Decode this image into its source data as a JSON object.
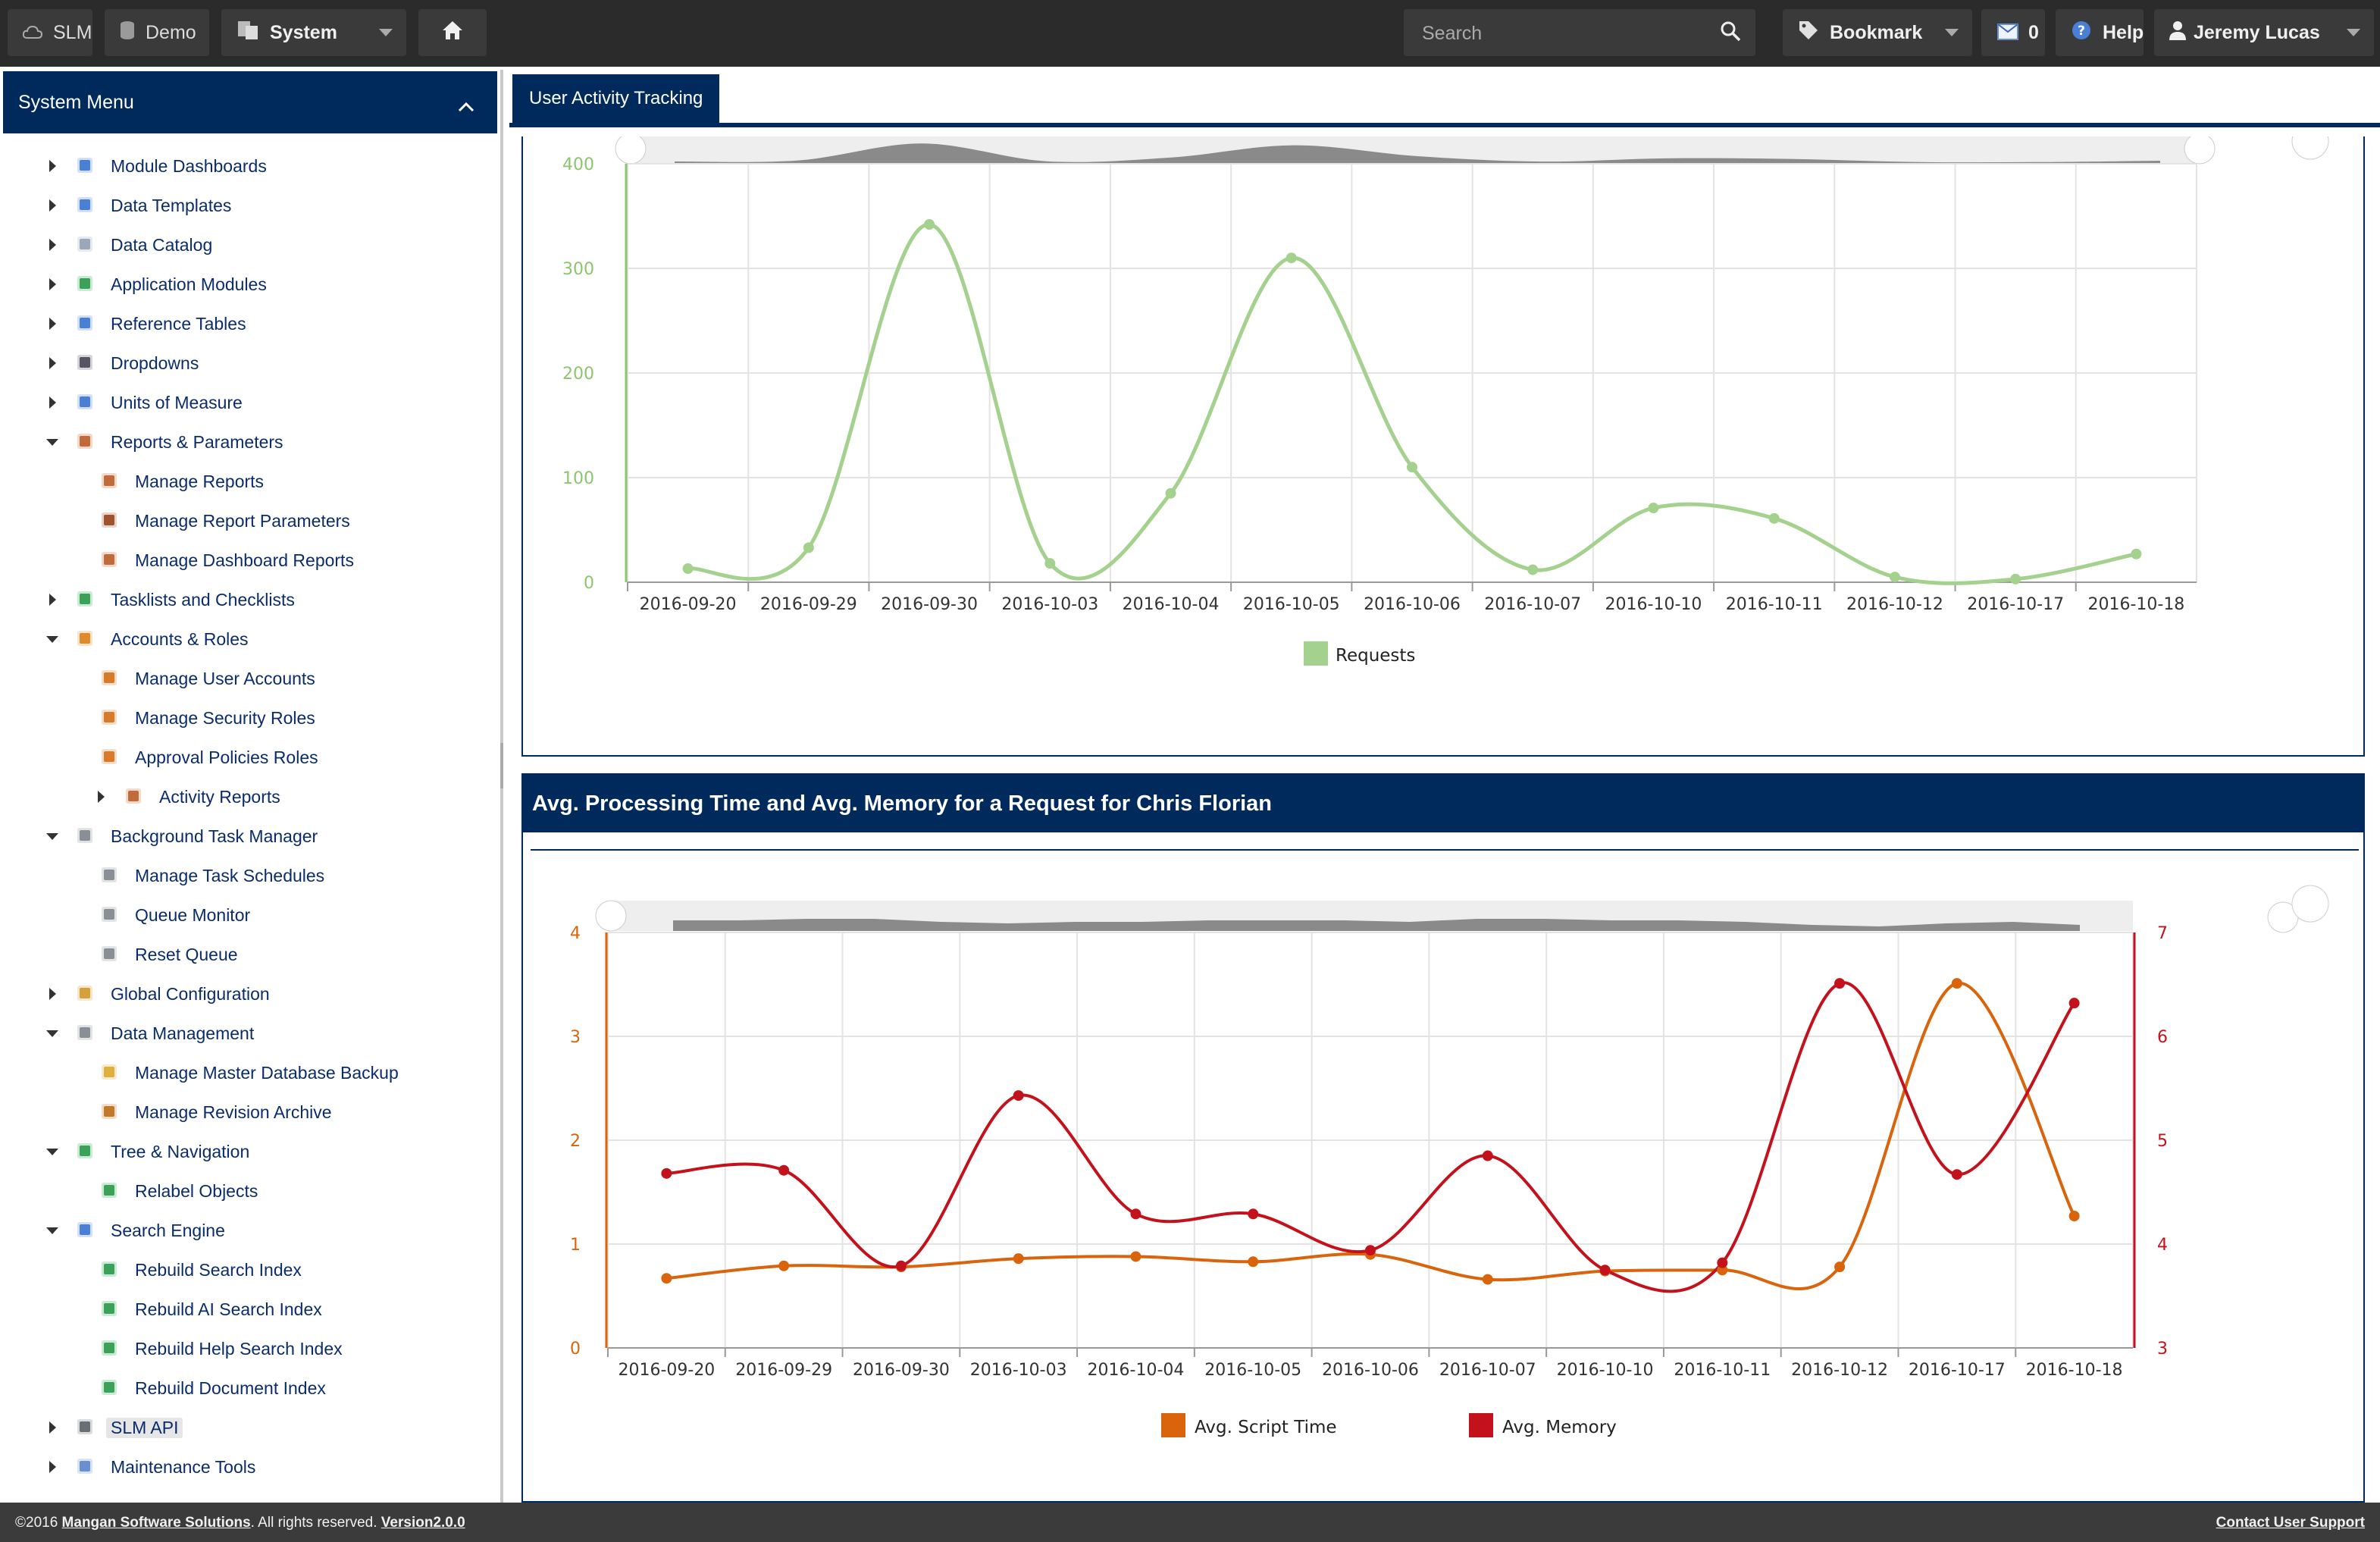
{
  "topbar": {
    "app_label": "SLM",
    "db_label": "Demo",
    "system_label": "System",
    "search_placeholder": "Search",
    "bookmark_label": "Bookmark",
    "inbox_count": "0",
    "help_label": "Help",
    "user_label": "Jeremy Lucas"
  },
  "sidebar": {
    "title": "System Menu",
    "items": [
      {
        "label": "Module Dashboards",
        "level": 0,
        "arrow": "right",
        "icon": "dashboard-icon"
      },
      {
        "label": "Data Templates",
        "level": 0,
        "arrow": "right",
        "icon": "template-icon"
      },
      {
        "label": "Data Catalog",
        "level": 0,
        "arrow": "right",
        "icon": "database-icon"
      },
      {
        "label": "Application Modules",
        "level": 0,
        "arrow": "right",
        "icon": "puzzle-icon"
      },
      {
        "label": "Reference Tables",
        "level": 0,
        "arrow": "right",
        "icon": "table-icon"
      },
      {
        "label": "Dropdowns",
        "level": 0,
        "arrow": "right",
        "icon": "list-icon"
      },
      {
        "label": "Units of Measure",
        "level": 0,
        "arrow": "right",
        "icon": "omega-icon"
      },
      {
        "label": "Reports & Parameters",
        "level": 0,
        "arrow": "down",
        "icon": "report-icon"
      },
      {
        "label": "Manage Reports",
        "level": 1,
        "arrow": "none",
        "icon": "report-icon"
      },
      {
        "label": "Manage Report Parameters",
        "level": 1,
        "arrow": "none",
        "icon": "report-user-icon"
      },
      {
        "label": "Manage Dashboard Reports",
        "level": 1,
        "arrow": "none",
        "icon": "report-icon"
      },
      {
        "label": "Tasklists and Checklists",
        "level": 0,
        "arrow": "right",
        "icon": "checklist-icon"
      },
      {
        "label": "Accounts & Roles",
        "level": 0,
        "arrow": "down",
        "icon": "users-icon"
      },
      {
        "label": "Manage User Accounts",
        "level": 1,
        "arrow": "none",
        "icon": "user-icon"
      },
      {
        "label": "Manage Security Roles",
        "level": 1,
        "arrow": "none",
        "icon": "user-icon"
      },
      {
        "label": "Approval Policies Roles",
        "level": 1,
        "arrow": "none",
        "icon": "user-icon"
      },
      {
        "label": "Activity Reports",
        "level": 2,
        "arrow": "right",
        "icon": "report-icon"
      },
      {
        "label": "Background Task Manager",
        "level": 0,
        "arrow": "down",
        "icon": "server-icon"
      },
      {
        "label": "Manage Task Schedules",
        "level": 1,
        "arrow": "none",
        "icon": "clock-icon"
      },
      {
        "label": "Queue Monitor",
        "level": 1,
        "arrow": "none",
        "icon": "clock-icon"
      },
      {
        "label": "Reset Queue",
        "level": 1,
        "arrow": "none",
        "icon": "clock-icon"
      },
      {
        "label": "Global Configuration",
        "level": 0,
        "arrow": "right",
        "icon": "gear-icon"
      },
      {
        "label": "Data Management",
        "level": 0,
        "arrow": "down",
        "icon": "database-gear-icon"
      },
      {
        "label": "Manage Master Database Backup",
        "level": 1,
        "arrow": "none",
        "icon": "database-backup-icon"
      },
      {
        "label": "Manage Revision Archive",
        "level": 1,
        "arrow": "none",
        "icon": "archive-icon"
      },
      {
        "label": "Tree & Navigation",
        "level": 0,
        "arrow": "down",
        "icon": "tree-icon"
      },
      {
        "label": "Relabel Objects",
        "level": 1,
        "arrow": "none",
        "icon": "refresh-icon"
      },
      {
        "label": "Search Engine",
        "level": 0,
        "arrow": "down",
        "icon": "magnifier-icon"
      },
      {
        "label": "Rebuild Search Index",
        "level": 1,
        "arrow": "none",
        "icon": "refresh-icon"
      },
      {
        "label": "Rebuild AI Search Index",
        "level": 1,
        "arrow": "none",
        "icon": "refresh-icon"
      },
      {
        "label": "Rebuild Help Search Index",
        "level": 1,
        "arrow": "none",
        "icon": "refresh-icon"
      },
      {
        "label": "Rebuild Document Index",
        "level": 1,
        "arrow": "none",
        "icon": "refresh-icon"
      },
      {
        "label": "SLM API",
        "level": 0,
        "arrow": "right",
        "icon": "api-icon",
        "selected": true
      },
      {
        "label": "Maintenance Tools",
        "level": 0,
        "arrow": "right",
        "icon": "wrench-icon"
      }
    ]
  },
  "tabs": [
    {
      "label": "User Activity Tracking"
    }
  ],
  "panel2": {
    "title": "Avg. Processing Time and Avg. Memory for a Request for Chris Florian"
  },
  "chart_data": [
    {
      "type": "line",
      "categories": [
        "2016-09-20",
        "2016-09-29",
        "2016-09-30",
        "2016-10-03",
        "2016-10-04",
        "2016-10-05",
        "2016-10-06",
        "2016-10-07",
        "2016-10-10",
        "2016-10-11",
        "2016-10-12",
        "2016-10-17",
        "2016-10-18"
      ],
      "series": [
        {
          "name": "Requests",
          "values": [
            13,
            33,
            342,
            18,
            85,
            310,
            110,
            12,
            71,
            61,
            5,
            3,
            27
          ],
          "color": "#a5d18e"
        }
      ],
      "ylim": [
        0,
        400
      ],
      "yticks": [
        0,
        100,
        200,
        300,
        400
      ],
      "axis_color": "#8cc56e",
      "grid": true,
      "legend": "bottom"
    },
    {
      "type": "line",
      "categories": [
        "2016-09-20",
        "2016-09-29",
        "2016-09-30",
        "2016-10-03",
        "2016-10-04",
        "2016-10-05",
        "2016-10-06",
        "2016-10-07",
        "2016-10-10",
        "2016-10-11",
        "2016-10-12",
        "2016-10-17",
        "2016-10-18"
      ],
      "series": [
        {
          "name": "Avg. Script Time",
          "axis": "left",
          "values": [
            0.67,
            0.79,
            0.78,
            0.86,
            0.88,
            0.83,
            0.9,
            0.66,
            0.74,
            0.75,
            0.78,
            3.51,
            1.27
          ],
          "color": "#d9640b"
        },
        {
          "name": "Avg. Memory",
          "axis": "right",
          "values": [
            4.68,
            4.71,
            3.79,
            5.43,
            4.29,
            4.29,
            3.94,
            4.85,
            3.75,
            3.82,
            6.51,
            4.67,
            6.32
          ],
          "color": "#c4121c"
        }
      ],
      "ylim_left": [
        0,
        4
      ],
      "yticks_left": [
        0,
        1,
        2,
        3,
        4
      ],
      "ylim_right": [
        3,
        7
      ],
      "yticks_right": [
        3,
        4,
        5,
        6,
        7
      ],
      "grid": true,
      "legend": "bottom"
    }
  ],
  "footer": {
    "copyright_prefix": "©2016 ",
    "company": "Mangan Software Solutions",
    "rights": ". All rights reserved. ",
    "version": "Version2.0.0",
    "support": "Contact User Support"
  }
}
